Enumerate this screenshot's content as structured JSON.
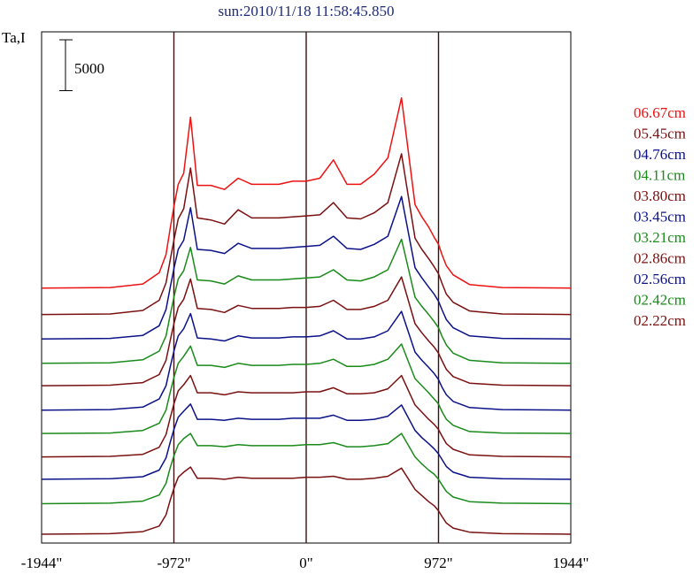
{
  "chart_data": {
    "type": "line",
    "title": "sun:2010/11/18 11:58:45.850",
    "ylabel": "Ta,I",
    "scale_bar_label": "5000",
    "scale_bar_value": 5000,
    "xlim": [
      -1944,
      1944
    ],
    "x_ticks": [
      "-1944\"",
      "-972\"",
      "0\"",
      "972\"",
      "1944\""
    ],
    "x_tick_values": [
      -1944,
      -972,
      0,
      972,
      1944
    ],
    "vertical_markers": [
      -972,
      0,
      972
    ],
    "grid": false,
    "legend_position": "right",
    "x": [
      -1944,
      -1440,
      -1200,
      -1080,
      -1030,
      -1000,
      -972,
      -940,
      -900,
      -850,
      -800,
      -700,
      -600,
      -500,
      -400,
      -300,
      -200,
      -100,
      0,
      100,
      200,
      300,
      400,
      500,
      600,
      700,
      800,
      850,
      900,
      940,
      972,
      1000,
      1030,
      1080,
      1200,
      1440,
      1944
    ],
    "series": [
      {
        "name": "06.67cm",
        "color": "#ee1111",
        "offset": 24200,
        "values": [
          0,
          50,
          400,
          1500,
          3300,
          5800,
          8000,
          10200,
          11300,
          16800,
          10100,
          10100,
          9700,
          10800,
          10200,
          10200,
          10200,
          10500,
          10500,
          10800,
          12600,
          10200,
          10200,
          11200,
          12800,
          18700,
          8200,
          7000,
          6000,
          5000,
          4300,
          3200,
          2200,
          1300,
          350,
          50,
          0
        ]
      },
      {
        "name": "05.45cm",
        "color": "#7a1010",
        "offset": 21600,
        "values": [
          0,
          50,
          400,
          1400,
          3100,
          5300,
          7300,
          9400,
          10400,
          14400,
          9500,
          9300,
          8900,
          10300,
          9500,
          9500,
          9500,
          9600,
          9700,
          9800,
          11000,
          9500,
          9400,
          10000,
          11000,
          15800,
          7500,
          6400,
          5500,
          4700,
          4000,
          3000,
          2000,
          1200,
          350,
          50,
          0
        ]
      },
      {
        "name": "04.76cm",
        "color": "#0b1288",
        "offset": 19200,
        "values": [
          0,
          50,
          350,
          1300,
          2900,
          5000,
          6900,
          8800,
          9700,
          12900,
          8800,
          8700,
          8400,
          9400,
          8900,
          8900,
          8900,
          9000,
          9100,
          9200,
          10100,
          8900,
          8800,
          9300,
          10100,
          14000,
          7000,
          6000,
          5100,
          4400,
          3700,
          2800,
          1900,
          1100,
          300,
          50,
          0
        ]
      },
      {
        "name": "04.11cm",
        "color": "#1a8a1a",
        "offset": 16800,
        "values": [
          0,
          50,
          350,
          1200,
          2700,
          4700,
          6500,
          8300,
          9100,
          11400,
          8200,
          8100,
          7800,
          8600,
          8200,
          8200,
          8200,
          8300,
          8400,
          8500,
          9200,
          8200,
          8100,
          8500,
          9200,
          12200,
          6500,
          5600,
          4800,
          4100,
          3500,
          2600,
          1800,
          1000,
          300,
          50,
          0
        ]
      },
      {
        "name": "03.80cm",
        "color": "#7a1010",
        "offset": 14600,
        "values": [
          0,
          50,
          300,
          1100,
          2500,
          4400,
          6100,
          7700,
          8500,
          10500,
          7600,
          7500,
          7200,
          7900,
          7600,
          7600,
          7600,
          7700,
          7700,
          7800,
          8400,
          7500,
          7500,
          7800,
          8400,
          10700,
          6100,
          5200,
          4400,
          3800,
          3200,
          2400,
          1600,
          900,
          250,
          50,
          0
        ]
      },
      {
        "name": "03.45cm",
        "color": "#0b1288",
        "offset": 12200,
        "values": [
          0,
          50,
          300,
          1100,
          2400,
          4200,
          5800,
          7300,
          8000,
          9500,
          7100,
          7000,
          6800,
          7300,
          7100,
          7100,
          7100,
          7200,
          7200,
          7300,
          7800,
          7000,
          7000,
          7200,
          7800,
          9700,
          5700,
          4900,
          4200,
          3600,
          3000,
          2200,
          1500,
          850,
          250,
          50,
          0
        ]
      },
      {
        "name": "03.21cm",
        "color": "#1a8a1a",
        "offset": 9900,
        "values": [
          0,
          50,
          300,
          1000,
          2300,
          4000,
          5500,
          6900,
          7600,
          8600,
          6700,
          6700,
          6500,
          6900,
          6700,
          6700,
          6700,
          6800,
          6800,
          6900,
          7300,
          6600,
          6600,
          6800,
          7300,
          8800,
          5400,
          4700,
          4000,
          3400,
          2900,
          2100,
          1400,
          800,
          200,
          50,
          0
        ]
      },
      {
        "name": "02.86cm",
        "color": "#7a1010",
        "offset": 7600,
        "values": [
          0,
          50,
          250,
          950,
          2200,
          3800,
          5200,
          6500,
          7100,
          8000,
          6300,
          6300,
          6100,
          6400,
          6300,
          6300,
          6300,
          6300,
          6400,
          6400,
          6800,
          6200,
          6200,
          6300,
          6700,
          8000,
          5100,
          4400,
          3700,
          3200,
          2700,
          2000,
          1300,
          750,
          200,
          50,
          0
        ]
      },
      {
        "name": "02.56cm",
        "color": "#0b1288",
        "offset": 5400,
        "values": [
          0,
          50,
          250,
          900,
          2100,
          3600,
          4900,
          6100,
          6700,
          7400,
          5900,
          5900,
          5800,
          6000,
          5900,
          5900,
          5900,
          6000,
          6000,
          6000,
          6300,
          5800,
          5800,
          5900,
          6200,
          7300,
          4800,
          4100,
          3500,
          3000,
          2500,
          1900,
          1250,
          700,
          200,
          50,
          0
        ]
      },
      {
        "name": "02.42cm",
        "color": "#1a8a1a",
        "offset": 3000,
        "values": [
          0,
          50,
          250,
          850,
          2000,
          3500,
          4700,
          5800,
          6400,
          6900,
          5700,
          5700,
          5600,
          5800,
          5700,
          5700,
          5700,
          5700,
          5800,
          5800,
          6000,
          5600,
          5600,
          5700,
          5900,
          6900,
          4600,
          3900,
          3300,
          2900,
          2400,
          1800,
          1200,
          650,
          200,
          50,
          0
        ]
      },
      {
        "name": "02.22cm",
        "color": "#7a1010",
        "offset": 0,
        "values": [
          0,
          50,
          250,
          800,
          1900,
          3300,
          4500,
          5600,
          6100,
          6600,
          5500,
          5500,
          5400,
          5600,
          5500,
          5500,
          5500,
          5500,
          5600,
          5600,
          5700,
          5400,
          5400,
          5500,
          5700,
          6500,
          4400,
          3800,
          3200,
          2800,
          2300,
          1700,
          1100,
          600,
          200,
          50,
          0
        ]
      }
    ]
  }
}
